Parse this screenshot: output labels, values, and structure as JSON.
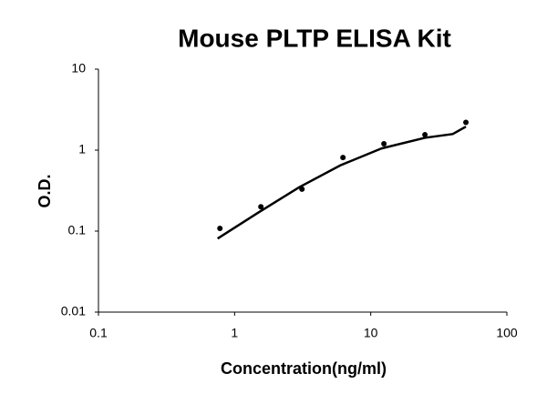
{
  "chart_data": {
    "type": "scatter",
    "title": "Mouse PLTP ELISA Kit",
    "x_label": "Concentration(ng/ml)",
    "y_label": "O.D.",
    "xscale": "log",
    "yscale": "log",
    "xlim": [
      0.1,
      100
    ],
    "ylim": [
      0.01,
      10
    ],
    "xticks": [
      0.1,
      1,
      10,
      100
    ],
    "yticks": [
      0.01,
      0.1,
      1,
      10
    ],
    "series": [
      {
        "type": "scatter",
        "color": "#000000",
        "x": [
          0.78,
          1.56,
          3.125,
          6.25,
          12.5,
          25,
          50
        ],
        "values": [
          0.108,
          0.2,
          0.33,
          0.81,
          1.2,
          1.55,
          2.2
        ]
      },
      {
        "type": "line",
        "color": "#000000",
        "x": [
          0.75,
          1.5,
          3,
          6,
          12,
          25,
          40,
          50
        ],
        "values": [
          0.081,
          0.17,
          0.35,
          0.65,
          1.05,
          1.42,
          1.58,
          1.95
        ]
      }
    ]
  }
}
